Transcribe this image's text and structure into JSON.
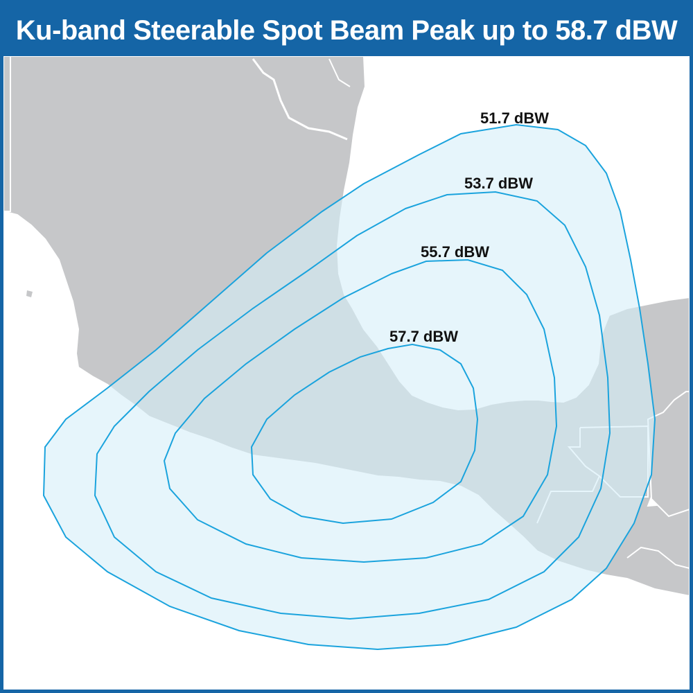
{
  "title": "Ku-band Steerable Spot Beam Peak up to 58.7 dBW",
  "colors": {
    "frame": "#1565a6",
    "land": "#c6c7c9",
    "borders": "#ffffff",
    "beam_fill": "#d6eff9",
    "beam_stroke": "#1aa3dd"
  },
  "contours": [
    {
      "label": "51.7 dBW"
    },
    {
      "label": "53.7 dBW"
    },
    {
      "label": "55.7 dBW"
    },
    {
      "label": "57.7 dBW"
    }
  ]
}
